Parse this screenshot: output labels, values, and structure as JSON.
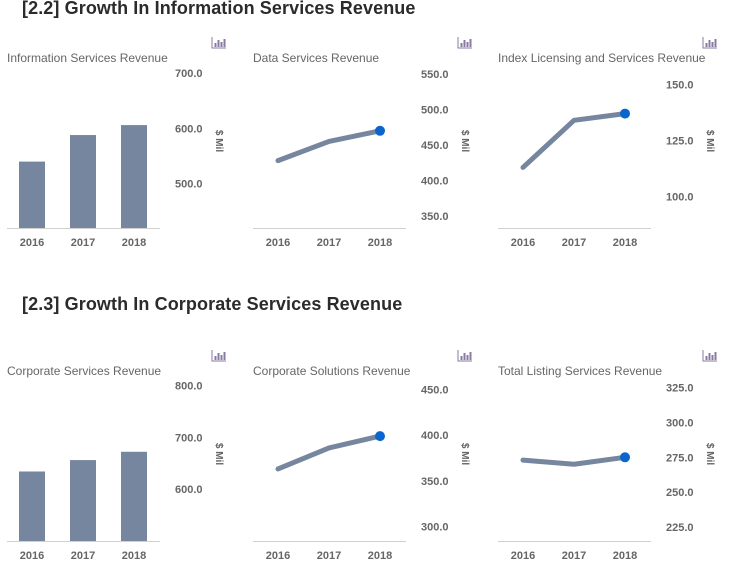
{
  "sections": [
    {
      "title": "[2.2] Growth In Information Services Revenue"
    },
    {
      "title": "[2.3] Growth In Corporate Services Revenue"
    }
  ],
  "colors": {
    "bar": "#76869f",
    "line": "#76869f",
    "marker": "#0a66cc",
    "axis_text": "#666666",
    "baseline": "#d0d0d0",
    "icon": "#8a7aa3"
  },
  "icon": "bar-chart-icon",
  "chart_data": [
    {
      "type": "bar",
      "title": "Information Services Revenue",
      "categories": [
        "2016",
        "2017",
        "2018"
      ],
      "values": [
        540,
        588,
        606
      ],
      "ylabel": "$ Mil",
      "yticks": [
        "500.0",
        "600.0",
        "700.0"
      ],
      "yticks_values": [
        500,
        600,
        700
      ],
      "ylim": [
        420,
        720
      ],
      "grid": false
    },
    {
      "type": "line",
      "title": "Data Services Revenue",
      "categories": [
        "2016",
        "2017",
        "2018"
      ],
      "values": [
        428,
        455,
        470
      ],
      "ylabel": "$ Mil",
      "yticks": [
        "350.0",
        "400.0",
        "450.0",
        "500.0",
        "550.0"
      ],
      "yticks_values": [
        350,
        400,
        450,
        500,
        550
      ],
      "ylim": [
        333,
        567
      ],
      "highlight_last": true,
      "grid": false
    },
    {
      "type": "line",
      "title": "Index Licensing and Services Revenue",
      "categories": [
        "2016",
        "2017",
        "2018"
      ],
      "values": [
        113,
        134,
        137
      ],
      "ylabel": "$ Mil",
      "yticks": [
        "100.0",
        "125.0",
        "150.0"
      ],
      "yticks_values": [
        100,
        125,
        150
      ],
      "ylim": [
        86,
        160
      ],
      "highlight_last": true,
      "grid": false
    },
    {
      "type": "bar",
      "title": "Corporate Services Revenue",
      "categories": [
        "2016",
        "2017",
        "2018"
      ],
      "values": [
        634,
        656,
        672
      ],
      "ylabel": "$ Mil",
      "yticks": [
        "600.0",
        "700.0",
        "800.0"
      ],
      "yticks_values": [
        600,
        700,
        800
      ],
      "ylim": [
        500,
        820
      ],
      "grid": false
    },
    {
      "type": "line",
      "title": "Corporate Solutions Revenue",
      "categories": [
        "2016",
        "2017",
        "2018"
      ],
      "values": [
        363,
        386,
        399
      ],
      "ylabel": "$ Mil",
      "yticks": [
        "300.0",
        "350.0",
        "400.0",
        "450.0"
      ],
      "yticks_values": [
        300,
        350,
        400,
        450
      ],
      "ylim": [
        284,
        466
      ],
      "highlight_last": true,
      "grid": false
    },
    {
      "type": "line",
      "title": "Total Listing Services Revenue",
      "categories": [
        "2016",
        "2017",
        "2018"
      ],
      "values": [
        273,
        270,
        275
      ],
      "ylabel": "$ Mil",
      "yticks": [
        "225.0",
        "250.0",
        "275.0",
        "300.0",
        "325.0"
      ],
      "yticks_values": [
        225,
        250,
        275,
        300,
        325
      ],
      "ylim": [
        215,
        334
      ],
      "highlight_last": true,
      "grid": false
    }
  ]
}
